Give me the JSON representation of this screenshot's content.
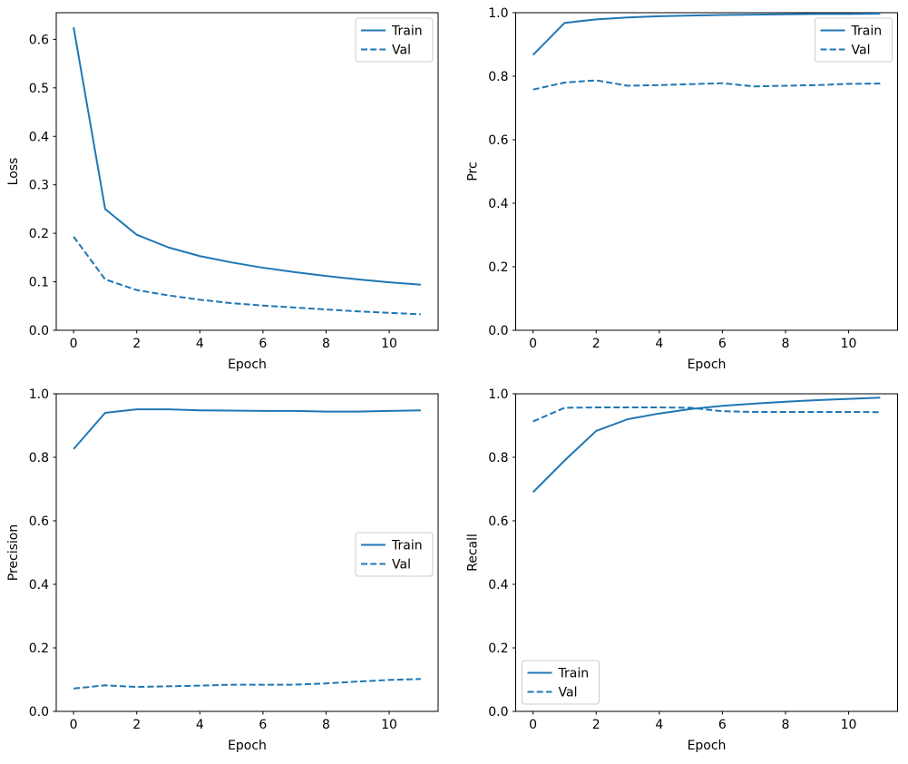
{
  "figure": {
    "background": "#ffffff",
    "line_color": "#1f77b4",
    "text_color": "#000000",
    "spine_color": "#000000",
    "legend_border_color": "#cccccc"
  },
  "chart_data": [
    {
      "type": "line",
      "title": "",
      "xlabel": "Epoch",
      "ylabel": "Loss",
      "x": [
        0,
        1,
        2,
        3,
        4,
        5,
        6,
        7,
        8,
        9,
        10,
        11
      ],
      "series": [
        {
          "name": "Train",
          "style": "solid",
          "values": [
            0.625,
            0.25,
            0.197,
            0.171,
            0.153,
            0.14,
            0.129,
            0.12,
            0.112,
            0.105,
            0.099,
            0.094
          ]
        },
        {
          "name": "Val",
          "style": "dashed",
          "values": [
            0.193,
            0.105,
            0.083,
            0.072,
            0.063,
            0.056,
            0.051,
            0.047,
            0.043,
            0.039,
            0.036,
            0.033
          ]
        }
      ],
      "xlim": [
        -0.55,
        11.55
      ],
      "ylim": [
        0.0,
        0.655
      ],
      "xticks": [
        0,
        2,
        4,
        6,
        8,
        10
      ],
      "yticks": [
        0.0,
        0.1,
        0.2,
        0.3,
        0.4,
        0.5,
        0.6
      ],
      "ytick_decimals": 1,
      "grid": false,
      "legend_position": "upper right",
      "legend_labels": [
        "Train",
        "Val"
      ]
    },
    {
      "type": "line",
      "title": "",
      "xlabel": "Epoch",
      "ylabel": "Prc",
      "x": [
        0,
        1,
        2,
        3,
        4,
        5,
        6,
        7,
        8,
        9,
        10,
        11
      ],
      "series": [
        {
          "name": "Train",
          "style": "solid",
          "values": [
            0.867,
            0.968,
            0.979,
            0.985,
            0.989,
            0.991,
            0.993,
            0.994,
            0.995,
            0.996,
            0.996,
            0.997
          ]
        },
        {
          "name": "Val",
          "style": "dashed",
          "values": [
            0.758,
            0.78,
            0.787,
            0.77,
            0.772,
            0.775,
            0.778,
            0.768,
            0.77,
            0.772,
            0.776,
            0.777
          ]
        }
      ],
      "xlim": [
        -0.55,
        11.55
      ],
      "ylim": [
        0.0,
        1.0
      ],
      "xticks": [
        0,
        2,
        4,
        6,
        8,
        10
      ],
      "yticks": [
        0.0,
        0.2,
        0.4,
        0.6,
        0.8,
        1.0
      ],
      "ytick_decimals": 1,
      "grid": false,
      "legend_position": "upper right",
      "legend_labels": [
        "Train",
        "Val"
      ]
    },
    {
      "type": "line",
      "title": "",
      "xlabel": "Epoch",
      "ylabel": "Precision",
      "x": [
        0,
        1,
        2,
        3,
        4,
        5,
        6,
        7,
        8,
        9,
        10,
        11
      ],
      "series": [
        {
          "name": "Train",
          "style": "solid",
          "values": [
            0.826,
            0.94,
            0.951,
            0.951,
            0.948,
            0.947,
            0.946,
            0.946,
            0.944,
            0.944,
            0.946,
            0.948
          ]
        },
        {
          "name": "Val",
          "style": "dashed",
          "values": [
            0.072,
            0.082,
            0.077,
            0.079,
            0.081,
            0.084,
            0.084,
            0.084,
            0.088,
            0.094,
            0.099,
            0.102
          ]
        }
      ],
      "xlim": [
        -0.55,
        11.55
      ],
      "ylim": [
        0.0,
        1.0
      ],
      "xticks": [
        0,
        2,
        4,
        6,
        8,
        10
      ],
      "yticks": [
        0.0,
        0.2,
        0.4,
        0.6,
        0.8,
        1.0
      ],
      "ytick_decimals": 1,
      "grid": false,
      "legend_position": "center right",
      "legend_labels": [
        "Train",
        "Val"
      ]
    },
    {
      "type": "line",
      "title": "",
      "xlabel": "Epoch",
      "ylabel": "Recall",
      "x": [
        0,
        1,
        2,
        3,
        4,
        5,
        6,
        7,
        8,
        9,
        10,
        11
      ],
      "series": [
        {
          "name": "Train",
          "style": "solid",
          "values": [
            0.69,
            0.79,
            0.883,
            0.92,
            0.938,
            0.952,
            0.962,
            0.969,
            0.975,
            0.98,
            0.984,
            0.988
          ]
        },
        {
          "name": "Val",
          "style": "dashed",
          "values": [
            0.913,
            0.956,
            0.957,
            0.957,
            0.957,
            0.956,
            0.945,
            0.943,
            0.943,
            0.943,
            0.943,
            0.942
          ]
        }
      ],
      "xlim": [
        -0.55,
        11.55
      ],
      "ylim": [
        0.0,
        1.0
      ],
      "xticks": [
        0,
        2,
        4,
        6,
        8,
        10
      ],
      "yticks": [
        0.0,
        0.2,
        0.4,
        0.6,
        0.8,
        1.0
      ],
      "ytick_decimals": 1,
      "grid": false,
      "legend_position": "lower left",
      "legend_labels": [
        "Train",
        "Val"
      ]
    }
  ]
}
